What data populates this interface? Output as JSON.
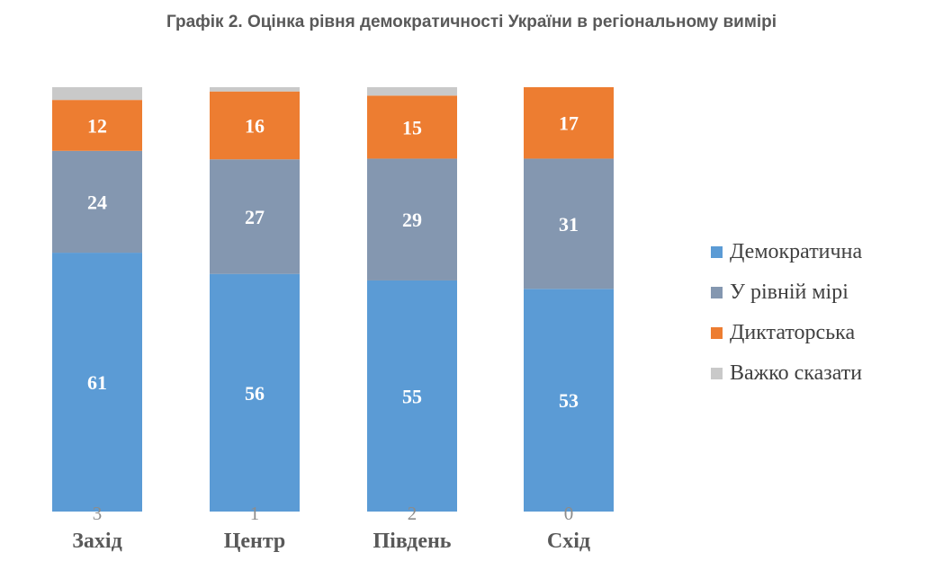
{
  "chart_data": {
    "type": "bar",
    "stacked": true,
    "percent": true,
    "title": "Графік 2. Оцінка рівня демократичності України в регіональному вимірі",
    "categories": [
      "Захід",
      "Центр",
      "Південь",
      "Схід"
    ],
    "series": [
      {
        "name": "Демократична",
        "color": "#5b9bd5",
        "label_color": "#ffffff",
        "values": [
          61,
          56,
          55,
          53
        ]
      },
      {
        "name": "У рівній мірі",
        "color": "#8497b0",
        "label_color": "#ffffff",
        "values": [
          24,
          27,
          29,
          31
        ]
      },
      {
        "name": "Диктаторська",
        "color": "#ed7d31",
        "label_color": "#ffffff",
        "values": [
          12,
          16,
          15,
          17
        ]
      },
      {
        "name": "Важко сказати",
        "color": "#c9c9c9",
        "label_color": "#8c8c8c",
        "values": [
          3,
          1,
          2,
          0
        ]
      }
    ],
    "ylim": [
      0,
      100
    ],
    "grid": false,
    "legend_position": "right"
  }
}
